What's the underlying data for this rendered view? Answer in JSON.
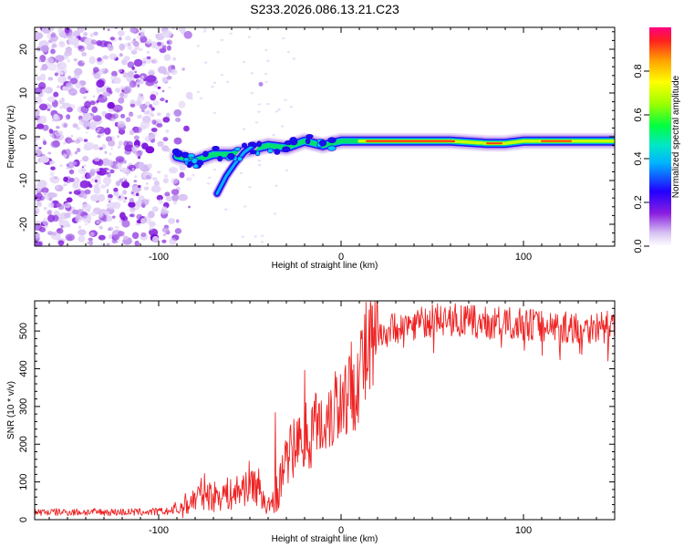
{
  "title": "S233.2026.086.13.21.C23",
  "chart_data": [
    {
      "type": "heatmap",
      "xlabel": "Height of straight line (km)",
      "ylabel": "Frequency (Hz)",
      "xlim": [
        -168,
        150
      ],
      "ylim": [
        -25,
        25
      ],
      "x_ticks": [
        -100,
        0,
        100
      ],
      "y_ticks": [
        -20,
        -10,
        0,
        10,
        20
      ],
      "ridge": {
        "x": [
          -90,
          -80,
          -70,
          -60,
          -50,
          -40,
          -30,
          -20,
          -10,
          0,
          10,
          20,
          40,
          60,
          80,
          90,
          100,
          120,
          150
        ],
        "y": [
          -4.5,
          -5.5,
          -4,
          -4,
          -3,
          -2,
          -2.5,
          -1,
          -2,
          -1,
          -1,
          -1,
          -1,
          -1,
          -1.5,
          -1.5,
          -1,
          -1,
          -1
        ]
      },
      "branch": {
        "x": [
          -68,
          -63,
          -58,
          -53,
          -48
        ],
        "y": [
          -13,
          -9,
          -6,
          -3.5,
          -2
        ]
      },
      "noise_region_x": [
        -168,
        -85
      ],
      "colorbar": {
        "label": "Normalized spectral amplitude",
        "range": [
          0.0,
          1.0
        ],
        "ticks": [
          "0.0",
          "0.2",
          "0.4",
          "0.6",
          "0.8"
        ]
      }
    },
    {
      "type": "line",
      "xlabel": "Height of straight line (km)",
      "ylabel": "SNR (10 * v/v)",
      "xlim": [
        -168,
        150
      ],
      "ylim": [
        0,
        580
      ],
      "x_ticks": [
        -100,
        0,
        100
      ],
      "y_ticks": [
        0,
        100,
        200,
        300,
        400,
        500
      ],
      "series": [
        {
          "name": "SNR",
          "color": "#ee2222",
          "x": [
            -168,
            -150,
            -130,
            -110,
            -95,
            -90,
            -85,
            -80,
            -75,
            -70,
            -65,
            -60,
            -55,
            -50,
            -45,
            -40,
            -35,
            -30,
            -25,
            -20,
            -15,
            -10,
            -5,
            0,
            5,
            10,
            15,
            20,
            25,
            30,
            40,
            50,
            60,
            80,
            100,
            120,
            150
          ],
          "y": [
            20,
            20,
            20,
            20,
            22,
            25,
            40,
            55,
            75,
            60,
            70,
            65,
            80,
            100,
            85,
            30,
            70,
            150,
            200,
            220,
            240,
            260,
            300,
            320,
            350,
            400,
            440,
            480,
            500,
            510,
            520,
            530,
            530,
            520,
            520,
            510,
            510
          ]
        }
      ]
    }
  ]
}
